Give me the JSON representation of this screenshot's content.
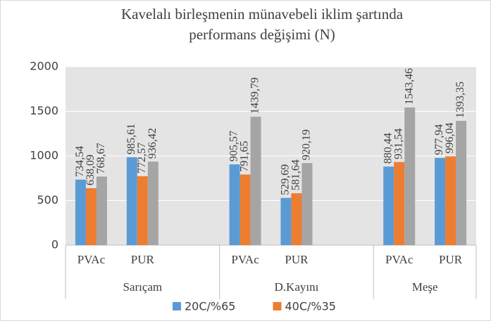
{
  "chart_data": {
    "type": "bar",
    "title": [
      "Kavelalı birleşmenin münavebeli iklim şartında",
      "performans değişimi (N)"
    ],
    "groups": [
      {
        "name": "Sarıçam",
        "categories": [
          "PVAc",
          "PUR",
          null
        ]
      },
      {
        "name": "D.Kayını",
        "categories": [
          "PVAc",
          "PUR",
          null
        ]
      },
      {
        "name": "Meşe",
        "categories": [
          "PVAc",
          "PUR"
        ]
      }
    ],
    "series": [
      {
        "name": "20C/%65",
        "color": "#5b9bd5",
        "values": [
          734.54,
          985.61,
          null,
          905.57,
          529.69,
          null,
          880.44,
          977.94
        ],
        "value_labels": [
          "734,54",
          "985,61",
          null,
          "905,57",
          "529,69",
          null,
          "880,44",
          "977,94"
        ]
      },
      {
        "name": "40C/%35",
        "color": "#ed7d31",
        "values": [
          638.09,
          772.57,
          null,
          791.65,
          581.64,
          null,
          931.54,
          996.04
        ],
        "value_labels": [
          "638,09",
          "772,57",
          null,
          "791,65",
          "581,64",
          null,
          "931,54",
          "996,04"
        ]
      },
      {
        "color": "#a5a5a5",
        "values": [
          768.67,
          936.42,
          null,
          1439.79,
          920.19,
          null,
          1543.46,
          1393.35
        ],
        "value_labels": [
          "768,67",
          "936,42",
          null,
          "1439,79",
          "920,19",
          null,
          "1543,46",
          "1393,35"
        ]
      }
    ],
    "ylim": [
      0,
      2000
    ],
    "yticks": [
      0,
      500,
      1000,
      1500,
      2000
    ],
    "grid": true
  }
}
